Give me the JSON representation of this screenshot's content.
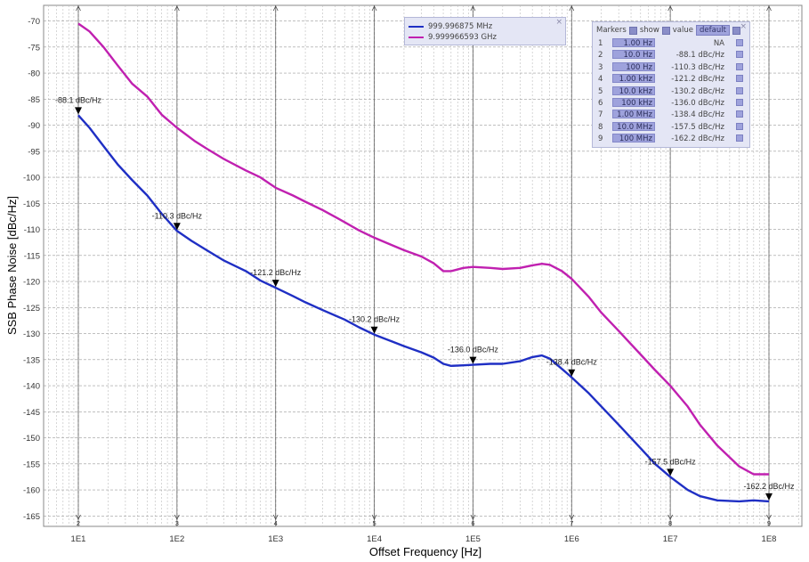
{
  "chart_data": {
    "type": "line",
    "xlabel": "Offset Frequency [Hz]",
    "ylabel": "SSB Phase Noise [dBc/Hz]",
    "xscale": "log",
    "xlim": [
      10,
      100000000
    ],
    "ylim": [
      -167,
      -67
    ],
    "grid": true,
    "y_ticks": [
      -70,
      -75,
      -80,
      -85,
      -90,
      -95,
      -100,
      -105,
      -110,
      -115,
      -120,
      -125,
      -130,
      -135,
      -140,
      -145,
      -150,
      -155,
      -160,
      -165
    ],
    "x_ticks": [
      {
        "value": 10,
        "label": "1E1"
      },
      {
        "value": 100,
        "label": "1E2"
      },
      {
        "value": 1000,
        "label": "1E3"
      },
      {
        "value": 10000,
        "label": "1E4"
      },
      {
        "value": 100000,
        "label": "1E5"
      },
      {
        "value": 1000000,
        "label": "1E6"
      },
      {
        "value": 10000000,
        "label": "1E7"
      },
      {
        "value": 100000000,
        "label": "1E8"
      }
    ],
    "series": [
      {
        "name": "999.996875 MHz",
        "color": "#1f2fc4",
        "points": [
          [
            10,
            -88.1
          ],
          [
            13,
            -90.5
          ],
          [
            18,
            -94
          ],
          [
            25,
            -97.5
          ],
          [
            35,
            -100.5
          ],
          [
            50,
            -103.5
          ],
          [
            70,
            -107
          ],
          [
            100,
            -110.3
          ],
          [
            140,
            -112.2
          ],
          [
            200,
            -114
          ],
          [
            300,
            -116
          ],
          [
            500,
            -118
          ],
          [
            700,
            -119.8
          ],
          [
            1000,
            -121.2
          ],
          [
            1500,
            -122.8
          ],
          [
            2000,
            -124
          ],
          [
            3000,
            -125.5
          ],
          [
            5000,
            -127.3
          ],
          [
            7000,
            -128.8
          ],
          [
            10000,
            -130.2
          ],
          [
            15000,
            -131.5
          ],
          [
            20000,
            -132.4
          ],
          [
            30000,
            -133.6
          ],
          [
            40000,
            -134.6
          ],
          [
            50000,
            -135.8
          ],
          [
            60000,
            -136.2
          ],
          [
            80000,
            -136.1
          ],
          [
            100000,
            -136.0
          ],
          [
            150000,
            -135.8
          ],
          [
            200000,
            -135.8
          ],
          [
            300000,
            -135.3
          ],
          [
            400000,
            -134.5
          ],
          [
            500000,
            -134.2
          ],
          [
            600000,
            -134.8
          ],
          [
            800000,
            -136.8
          ],
          [
            1000000,
            -138.4
          ],
          [
            1500000,
            -141.5
          ],
          [
            2000000,
            -144
          ],
          [
            3000000,
            -147.5
          ],
          [
            5000000,
            -152
          ],
          [
            7000000,
            -155
          ],
          [
            10000000,
            -157.5
          ],
          [
            15000000,
            -160
          ],
          [
            20000000,
            -161.2
          ],
          [
            30000000,
            -162
          ],
          [
            50000000,
            -162.2
          ],
          [
            70000000,
            -162
          ],
          [
            100000000,
            -162.2
          ]
        ]
      },
      {
        "name": "9.999966593 GHz",
        "color": "#c020b0",
        "points": [
          [
            10,
            -70.5
          ],
          [
            13,
            -72
          ],
          [
            18,
            -75
          ],
          [
            25,
            -78.5
          ],
          [
            35,
            -82
          ],
          [
            50,
            -84.5
          ],
          [
            70,
            -88
          ],
          [
            100,
            -90.5
          ],
          [
            150,
            -93
          ],
          [
            200,
            -94.5
          ],
          [
            300,
            -96.5
          ],
          [
            500,
            -98.7
          ],
          [
            700,
            -100
          ],
          [
            1000,
            -102
          ],
          [
            1500,
            -103.5
          ],
          [
            2000,
            -104.7
          ],
          [
            3000,
            -106.3
          ],
          [
            5000,
            -108.6
          ],
          [
            7000,
            -110.2
          ],
          [
            10000,
            -111.6
          ],
          [
            15000,
            -113
          ],
          [
            20000,
            -114
          ],
          [
            30000,
            -115.2
          ],
          [
            40000,
            -116.5
          ],
          [
            50000,
            -118
          ],
          [
            60000,
            -118
          ],
          [
            80000,
            -117.4
          ],
          [
            100000,
            -117.2
          ],
          [
            150000,
            -117.4
          ],
          [
            200000,
            -117.6
          ],
          [
            300000,
            -117.4
          ],
          [
            400000,
            -116.9
          ],
          [
            500000,
            -116.6
          ],
          [
            600000,
            -116.8
          ],
          [
            800000,
            -118
          ],
          [
            1000000,
            -119.5
          ],
          [
            1500000,
            -123
          ],
          [
            2000000,
            -126
          ],
          [
            3000000,
            -129.5
          ],
          [
            5000000,
            -134
          ],
          [
            7000000,
            -137
          ],
          [
            10000000,
            -140
          ],
          [
            15000000,
            -144
          ],
          [
            20000000,
            -147.5
          ],
          [
            30000000,
            -151.5
          ],
          [
            50000000,
            -155.5
          ],
          [
            70000000,
            -157
          ],
          [
            100000000,
            -157
          ]
        ]
      }
    ],
    "markers": [
      {
        "id": "1",
        "freq_label": "1.00 Hz",
        "x": 1,
        "value": "NA"
      },
      {
        "id": "2",
        "freq_label": "10.0 Hz",
        "x": 10,
        "y": -88.1,
        "value": "-88.1 dBc/Hz",
        "label": "-88.1 dBc/Hz"
      },
      {
        "id": "3",
        "freq_label": "100 Hz",
        "x": 100,
        "y": -110.3,
        "value": "-110.3 dBc/Hz",
        "label": "-110.3 dBc/Hz"
      },
      {
        "id": "4",
        "freq_label": "1.00 kHz",
        "x": 1000,
        "y": -121.2,
        "value": "-121.2 dBc/Hz",
        "label": "-121.2 dBc/Hz"
      },
      {
        "id": "5",
        "freq_label": "10.0 kHz",
        "x": 10000,
        "y": -130.2,
        "value": "-130.2 dBc/Hz",
        "label": "-130.2 dBc/Hz"
      },
      {
        "id": "6",
        "freq_label": "100 kHz",
        "x": 100000,
        "y": -136.0,
        "value": "-136.0 dBc/Hz",
        "label": "-136.0 dBc/Hz"
      },
      {
        "id": "7",
        "freq_label": "1.00 MHz",
        "x": 1000000,
        "y": -138.4,
        "value": "-138.4 dBc/Hz",
        "label": "-138.4 dBc/Hz"
      },
      {
        "id": "8",
        "freq_label": "10.0 MHz",
        "x": 10000000,
        "y": -157.5,
        "value": "-157.5 dBc/Hz",
        "label": "-157.5 dBc/Hz"
      },
      {
        "id": "9",
        "freq_label": "100 MHz",
        "x": 100000000,
        "y": -162.2,
        "value": "-162.2 dBc/Hz",
        "label": "-162.2 dBc/Hz"
      }
    ]
  },
  "legend_panel": {
    "entries": [
      {
        "name": "999.996875 MHz",
        "color": "#1f2fc4"
      },
      {
        "name": "9.999966593 GHz",
        "color": "#c020b0"
      }
    ],
    "close_glyph": "×"
  },
  "markers_panel": {
    "title": "Markers",
    "show_label": "show",
    "value_label": "value",
    "default_label": "default",
    "close_glyph": "×"
  }
}
